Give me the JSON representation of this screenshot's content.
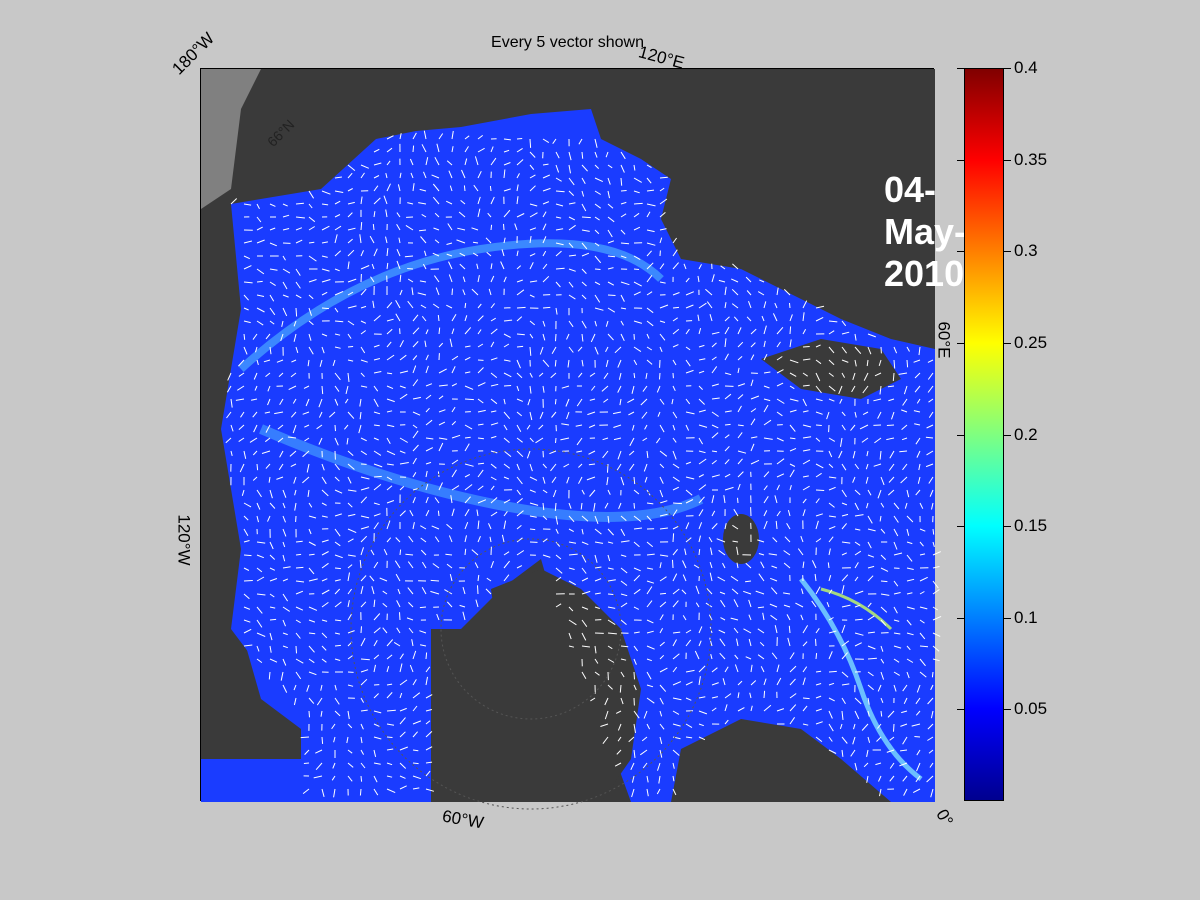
{
  "title": "Every 5 vector shown",
  "date_label": "04-May-2010",
  "map_labels": {
    "lon_180w": "180°W",
    "lon_120e": "120°E",
    "lon_60e": "60°E",
    "lon_0": "0°",
    "lon_60w": "60°W",
    "lon_120w": "120°W",
    "lat_66n": "66°N"
  },
  "colorbar": {
    "colormap": "jet",
    "min": 0,
    "max": 0.4,
    "tick_labels": [
      "0.4",
      "0.35",
      "0.3",
      "0.25",
      "0.2",
      "0.15",
      "0.1",
      "0.05"
    ],
    "tick_values": [
      0.4,
      0.35,
      0.3,
      0.25,
      0.2,
      0.15,
      0.1,
      0.05
    ]
  },
  "colors": {
    "background": "#c8c8c8",
    "land": "#3a3a3a",
    "water_outside": "#808080",
    "ice_field": "#1a3cff",
    "vectors": "#ffffff"
  }
}
